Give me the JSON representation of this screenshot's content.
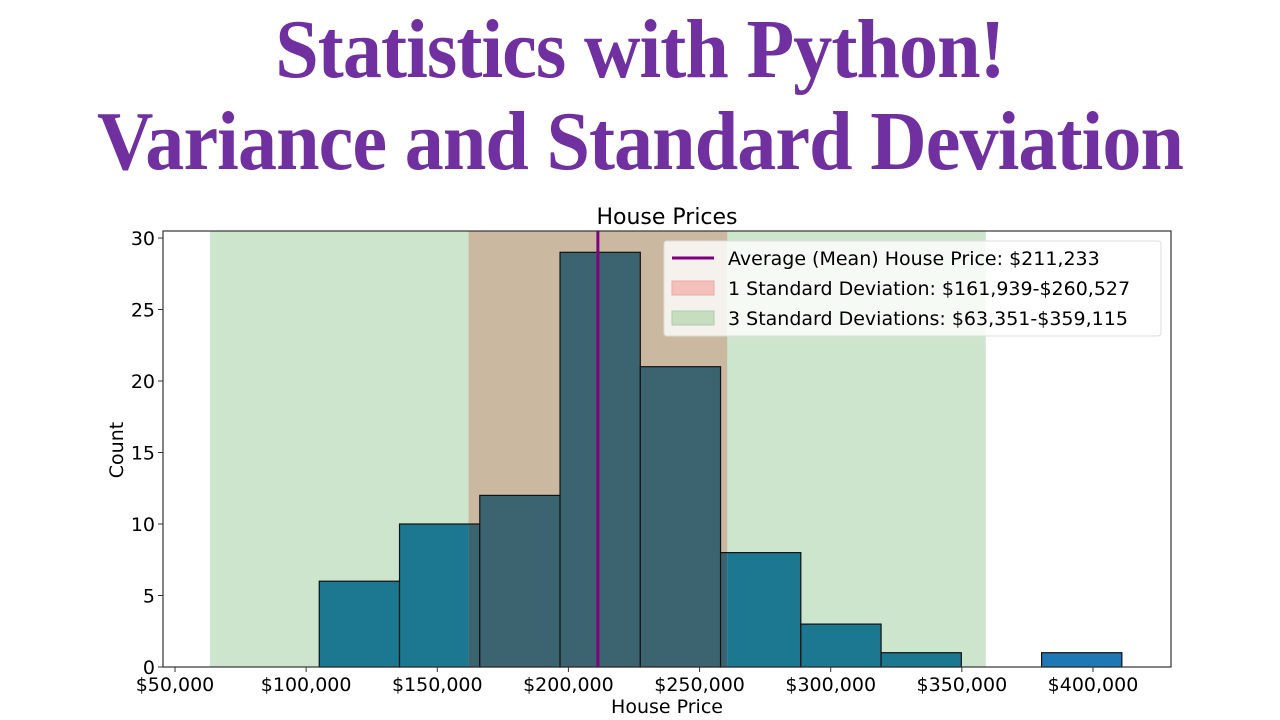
{
  "headline": {
    "line1": "Statistics with Python!",
    "line2": "Variance and Standard Deviation",
    "color": "#7030a0"
  },
  "chart_data": {
    "type": "bar",
    "title": "House Prices",
    "xlabel": "House Price",
    "ylabel": "Count",
    "xlim": [
      45500,
      425000
    ],
    "ylim": [
      0,
      30.5
    ],
    "x_ticks": [
      50000,
      100000,
      150000,
      200000,
      250000,
      300000,
      350000,
      400000
    ],
    "x_tick_labels": [
      "$50,000",
      "$100,000",
      "$150,000",
      "$200,000",
      "$250,000",
      "$300,000",
      "$350,000",
      "$400,000"
    ],
    "y_ticks": [
      0,
      5,
      10,
      15,
      20,
      25,
      30
    ],
    "y_tick_labels": [
      "0",
      "5",
      "10",
      "15",
      "20",
      "25",
      "30"
    ],
    "grid": false,
    "legend_position": "upper right",
    "bins": [
      {
        "start": 105000,
        "end": 135600,
        "count": 6
      },
      {
        "start": 135600,
        "end": 166200,
        "count": 10
      },
      {
        "start": 166200,
        "end": 196800,
        "count": 12
      },
      {
        "start": 196800,
        "end": 227400,
        "count": 29
      },
      {
        "start": 227400,
        "end": 258000,
        "count": 21
      },
      {
        "start": 258000,
        "end": 288600,
        "count": 8
      },
      {
        "start": 288600,
        "end": 319200,
        "count": 3
      },
      {
        "start": 319200,
        "end": 349800,
        "count": 1
      },
      {
        "start": 349800,
        "end": 380400,
        "count": 0
      },
      {
        "start": 380400,
        "end": 411000,
        "count": 1
      }
    ],
    "categories": [
      "$105k-$136k",
      "$136k-$166k",
      "$166k-$197k",
      "$197k-$227k",
      "$227k-$258k",
      "$258k-$289k",
      "$289k-$319k",
      "$319k-$350k",
      "$350k-$380k",
      "$380k-$411k"
    ],
    "values": [
      6,
      10,
      12,
      29,
      21,
      8,
      3,
      1,
      0,
      1
    ],
    "mean": 211233,
    "std_1_range": [
      161939,
      260527
    ],
    "std_3_range": [
      63351,
      359115
    ],
    "legend": [
      {
        "label": "Average (Mean) House Price: $211,233",
        "type": "line",
        "color": "#800080"
      },
      {
        "label": "1 Standard Deviation: $161,939-$260,527",
        "type": "patch",
        "color": "#f08080"
      },
      {
        "label": "3 Standard Deviations: $63,351-$359,115",
        "type": "patch",
        "color": "#90c890"
      }
    ],
    "colors": {
      "bar": "#1f77b4",
      "bar_edge": "#000000",
      "mean_line": "#800080",
      "std1_band": "#e8a080",
      "std3_band": "#cde5cd"
    }
  }
}
